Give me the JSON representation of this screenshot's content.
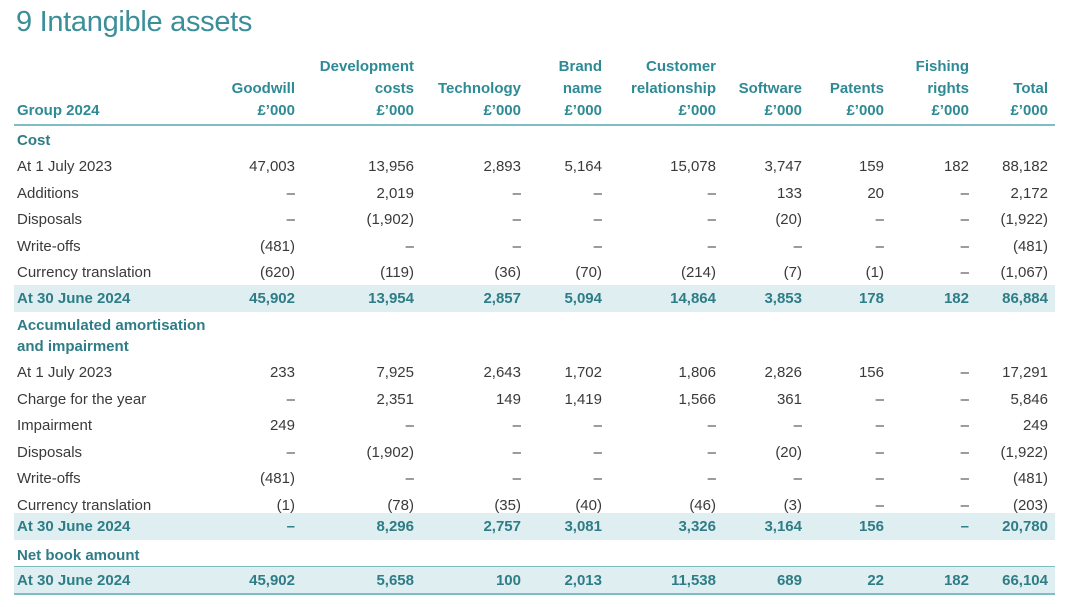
{
  "title": "9 Intangible assets",
  "header": {
    "group_label": "Group 2024",
    "columns": [
      {
        "lines": [
          "Goodwill",
          "£’000"
        ]
      },
      {
        "lines": [
          "Development",
          "costs",
          "£’000"
        ]
      },
      {
        "lines": [
          "Technology",
          "£’000"
        ]
      },
      {
        "lines": [
          "Brand",
          "name",
          "£’000"
        ]
      },
      {
        "lines": [
          "Customer",
          "relationship",
          "£’000"
        ]
      },
      {
        "lines": [
          "Software",
          "£’000"
        ]
      },
      {
        "lines": [
          "Patents",
          "£’000"
        ]
      },
      {
        "lines": [
          "Fishing",
          "rights",
          "£’000"
        ]
      },
      {
        "lines": [
          "Total",
          "£’000"
        ]
      }
    ]
  },
  "sections": {
    "cost": "Cost",
    "amortisation_line1": "Accumulated amortisation",
    "amortisation_line2": "and impairment",
    "net": "Net book amount"
  },
  "cost_rows": [
    {
      "label": "At 1 July 2023",
      "values": [
        "47,003",
        "13,956",
        "2,893",
        "5,164",
        "15,078",
        "3,747",
        "159",
        "182",
        "88,182"
      ]
    },
    {
      "label": "Additions",
      "values": [
        "–",
        "2,019",
        "–",
        "–",
        "–",
        "133",
        "20",
        "–",
        "2,172"
      ]
    },
    {
      "label": "Disposals",
      "values": [
        "–",
        "(1,902)",
        "–",
        "–",
        "–",
        "(20)",
        "–",
        "–",
        "(1,922)"
      ]
    },
    {
      "label": "Write-offs",
      "values": [
        "(481)",
        "–",
        "–",
        "–",
        "–",
        "–",
        "–",
        "–",
        "(481)"
      ]
    },
    {
      "label": "Currency translation",
      "values": [
        "(620)",
        "(119)",
        "(36)",
        "(70)",
        "(214)",
        "(7)",
        "(1)",
        "–",
        "(1,067)"
      ]
    }
  ],
  "cost_total": {
    "label": "At 30 June 2024",
    "values": [
      "45,902",
      "13,954",
      "2,857",
      "5,094",
      "14,864",
      "3,853",
      "178",
      "182",
      "86,884"
    ]
  },
  "amort_rows": [
    {
      "label": "At 1 July 2023",
      "values": [
        "233",
        "7,925",
        "2,643",
        "1,702",
        "1,806",
        "2,826",
        "156",
        "–",
        "17,291"
      ]
    },
    {
      "label": "Charge for the year",
      "values": [
        "–",
        "2,351",
        "149",
        "1,419",
        "1,566",
        "361",
        "–",
        "–",
        "5,846"
      ]
    },
    {
      "label": "Impairment",
      "values": [
        "249",
        "–",
        "–",
        "–",
        "–",
        "–",
        "–",
        "–",
        "249"
      ]
    },
    {
      "label": "Disposals",
      "values": [
        "–",
        "(1,902)",
        "–",
        "–",
        "–",
        "(20)",
        "–",
        "–",
        "(1,922)"
      ]
    },
    {
      "label": "Write-offs",
      "values": [
        "(481)",
        "–",
        "–",
        "–",
        "–",
        "–",
        "–",
        "–",
        "(481)"
      ]
    },
    {
      "label": "Currency translation",
      "values": [
        "(1)",
        "(78)",
        "(35)",
        "(40)",
        "(46)",
        "(3)",
        "–",
        "–",
        "(203)"
      ]
    }
  ],
  "amort_total": {
    "label": "At 30 June 2024",
    "values": [
      "–",
      "8,296",
      "2,757",
      "3,081",
      "3,326",
      "3,164",
      "156",
      "–",
      "20,780"
    ]
  },
  "net_total": {
    "label": "At 30 June 2024",
    "values": [
      "45,902",
      "5,658",
      "100",
      "2,013",
      "11,538",
      "689",
      "22",
      "182",
      "66,104"
    ]
  },
  "colors": {
    "accent": "#2e8a94",
    "band": "#dfeef1",
    "rule": "#7fbdc4"
  }
}
